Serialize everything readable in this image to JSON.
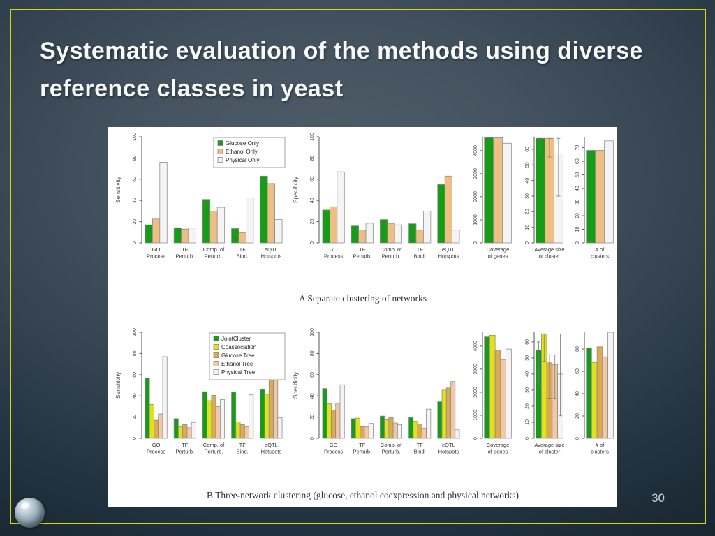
{
  "slide": {
    "title": "Systematic evaluation of the methods using diverse reference classes in yeast",
    "page_number": "30"
  },
  "figure": {
    "caption_a": "A Separate clustering of networks",
    "caption_b": "B Three-network clustering (glucose, ethanol coexpression and physical networks)"
  },
  "colors": {
    "frame_yellow": "#d6d60c",
    "title_text": "#f7f9fa",
    "panel_bg": "#ffffff",
    "page_number_text": "#c9d0d5",
    "glucose_green": "#169c16",
    "ethanol_tan": "#edbf85",
    "physical_white": "#f4f4f4",
    "coassociation_yellow": "#e3e01e",
    "glucose_tree_gold": "#dcaa52",
    "ethanol_tree_salmon": "#f0c9ab"
  },
  "chart_data": [
    {
      "type": "bar",
      "panel": "A",
      "ylabel": "Sensitivity",
      "ylim": [
        0,
        100
      ],
      "yticks": [
        0,
        20,
        40,
        60,
        80,
        100
      ],
      "grid": false,
      "legend": true,
      "legend_position": "top-right",
      "categories": [
        "GO|Process",
        "TF|Perturb.",
        "Comp. of|Perturb.",
        "TF|Bind.",
        "eQTL|Hotspots"
      ],
      "series": [
        {
          "name": "Glucose Only",
          "color": "#169c16",
          "values": [
            17,
            14,
            41,
            13.5,
            63
          ]
        },
        {
          "name": "Ethanol Only",
          "color": "#edbf85",
          "values": [
            22.5,
            13,
            30,
            9.5,
            56
          ]
        },
        {
          "name": "Physical Only",
          "color": "#f4f4f4",
          "values": [
            76,
            14,
            33.5,
            42.5,
            22
          ]
        }
      ]
    },
    {
      "type": "bar",
      "panel": "A",
      "ylabel": "Specificity",
      "ylim": [
        0,
        100
      ],
      "yticks": [
        0,
        20,
        40,
        60,
        80,
        100
      ],
      "grid": false,
      "legend": false,
      "categories": [
        "GO|Process",
        "TF|Perturb.",
        "Comp. of|Perturb.",
        "TF|Bind.",
        "eQTL|Hotspots"
      ],
      "series": [
        {
          "name": "Glucose Only",
          "color": "#169c16",
          "values": [
            31,
            16,
            22,
            18,
            55
          ]
        },
        {
          "name": "Ethanol Only",
          "color": "#edbf85",
          "values": [
            34,
            12,
            18,
            12,
            63
          ]
        },
        {
          "name": "Physical Only",
          "color": "#f4f4f4",
          "values": [
            67,
            18.5,
            17,
            30,
            12
          ]
        }
      ]
    },
    {
      "type": "bar",
      "panel": "A",
      "ylabel": "",
      "ylim": [
        0,
        4600
      ],
      "yticks": [
        0,
        1000,
        2000,
        3000,
        4000
      ],
      "grid": false,
      "legend": false,
      "categories": [
        "Coverage|of genes"
      ],
      "series": [
        {
          "name": "Glucose Only",
          "color": "#169c16",
          "values": [
            4560
          ]
        },
        {
          "name": "Ethanol Only",
          "color": "#edbf85",
          "values": [
            4560
          ]
        },
        {
          "name": "Physical Only",
          "color": "#f4f4f4",
          "values": [
            4320
          ]
        }
      ]
    },
    {
      "type": "bar",
      "panel": "A",
      "ylabel": "",
      "ylim": [
        0,
        68
      ],
      "yticks": [
        0,
        10,
        20,
        30,
        40,
        50,
        60
      ],
      "grid": false,
      "legend": false,
      "categories": [
        "Average size|of cluster"
      ],
      "series": [
        {
          "name": "Glucose Only",
          "color": "#169c16",
          "values": [
            67
          ],
          "error": [
            57,
            67
          ]
        },
        {
          "name": "Ethanol Only",
          "color": "#edbf85",
          "values": [
            67
          ],
          "error": [
            55,
            67
          ]
        },
        {
          "name": "Physical Only",
          "color": "#f4f4f4",
          "values": [
            57
          ],
          "error": [
            30,
            67
          ]
        }
      ]
    },
    {
      "type": "bar",
      "panel": "A",
      "ylabel": "",
      "ylim": [
        0,
        78
      ],
      "yticks": [
        0,
        10,
        20,
        30,
        40,
        50,
        60,
        70
      ],
      "grid": false,
      "legend": false,
      "categories": [
        "# of|clusters"
      ],
      "series": [
        {
          "name": "Glucose Only",
          "color": "#169c16",
          "values": [
            68
          ]
        },
        {
          "name": "Ethanol Only",
          "color": "#edbf85",
          "values": [
            68
          ]
        },
        {
          "name": "Physical Only",
          "color": "#f4f4f4",
          "values": [
            75
          ]
        }
      ]
    },
    {
      "type": "bar",
      "panel": "B",
      "ylabel": "Sensitivity",
      "ylim": [
        0,
        100
      ],
      "yticks": [
        0,
        20,
        40,
        60,
        80,
        100
      ],
      "grid": false,
      "legend": true,
      "legend_position": "top-right",
      "categories": [
        "GO|Process",
        "TF|Perturb.",
        "Comp. of|Perturb.",
        "TF|Bind.",
        "eQTL|Hotspots"
      ],
      "series": [
        {
          "name": "JointCluster",
          "color": "#169c16",
          "values": [
            57,
            18.5,
            44,
            43.5,
            46
          ]
        },
        {
          "name": "Coassociation",
          "color": "#e3e01e",
          "values": [
            32,
            11,
            35.5,
            15.5,
            41.5
          ]
        },
        {
          "name": "Glucose Tree",
          "color": "#dcaa52",
          "values": [
            17,
            13,
            40.5,
            13,
            56.5
          ]
        },
        {
          "name": "Ethanol Tree",
          "color": "#f0c9ab",
          "values": [
            23,
            10,
            30,
            11,
            56.5
          ]
        },
        {
          "name": "Physical Tree",
          "color": "#f4f4f4",
          "values": [
            77,
            15,
            36.5,
            41,
            19.5
          ]
        }
      ]
    },
    {
      "type": "bar",
      "panel": "B",
      "ylabel": "Specificity",
      "ylim": [
        0,
        100
      ],
      "yticks": [
        0,
        20,
        40,
        60,
        80,
        100
      ],
      "grid": false,
      "legend": false,
      "categories": [
        "GO|Process",
        "TF|Perturb.",
        "Comp. of|Perturb.",
        "TF|Bind.",
        "eQTL|Hotspots"
      ],
      "series": [
        {
          "name": "JointCluster",
          "color": "#169c16",
          "values": [
            47,
            18.5,
            21,
            19.5,
            34.5
          ]
        },
        {
          "name": "Coassociation",
          "color": "#e3e01e",
          "values": [
            32.5,
            19,
            17.5,
            16,
            45.5
          ]
        },
        {
          "name": "Glucose Tree",
          "color": "#dcaa52",
          "values": [
            26.5,
            11,
            19.5,
            13.5,
            47.5
          ]
        },
        {
          "name": "Ethanol Tree",
          "color": "#f0c9ab",
          "values": [
            33,
            11,
            14.5,
            9.5,
            53.5
          ]
        },
        {
          "name": "Physical Tree",
          "color": "#f4f4f4",
          "values": [
            50.5,
            14,
            13,
            27.5,
            8
          ]
        }
      ]
    },
    {
      "type": "bar",
      "panel": "B",
      "ylabel": "",
      "ylim": [
        0,
        4600
      ],
      "yticks": [
        0,
        1000,
        2000,
        3000,
        4000
      ],
      "grid": false,
      "legend": false,
      "categories": [
        "Coverage|of genes"
      ],
      "series": [
        {
          "name": "JointCluster",
          "color": "#169c16",
          "values": [
            4400
          ]
        },
        {
          "name": "Coassociation",
          "color": "#e3e01e",
          "values": [
            4470
          ]
        },
        {
          "name": "Glucose Tree",
          "color": "#dcaa52",
          "values": [
            3820
          ]
        },
        {
          "name": "Ethanol Tree",
          "color": "#f0c9ab",
          "values": [
            3400
          ]
        },
        {
          "name": "Physical Tree",
          "color": "#f4f4f4",
          "values": [
            3870
          ]
        }
      ]
    },
    {
      "type": "bar",
      "panel": "B",
      "ylabel": "",
      "ylim": [
        0,
        66
      ],
      "yticks": [
        0,
        10,
        20,
        30,
        40,
        50,
        60
      ],
      "grid": false,
      "legend": false,
      "categories": [
        "Average size|of cluster"
      ],
      "series": [
        {
          "name": "JointCluster",
          "color": "#169c16",
          "values": [
            55
          ],
          "error": [
            32,
            60
          ]
        },
        {
          "name": "Coassociation",
          "color": "#e3e01e",
          "values": [
            65
          ],
          "error": [
            48,
            65
          ]
        },
        {
          "name": "Glucose Tree",
          "color": "#dcaa52",
          "values": [
            47
          ],
          "error": [
            25,
            52
          ]
        },
        {
          "name": "Ethanol Tree",
          "color": "#f0c9ab",
          "values": [
            46
          ],
          "error": [
            25,
            52
          ]
        },
        {
          "name": "Physical Tree",
          "color": "#f4f4f4",
          "values": [
            40
          ],
          "error": [
            14,
            65
          ]
        }
      ]
    },
    {
      "type": "bar",
      "panel": "B",
      "ylabel": "",
      "ylim": [
        0,
        95
      ],
      "yticks": [
        0,
        20,
        40,
        60,
        80
      ],
      "grid": false,
      "legend": false,
      "categories": [
        "# of|clusters"
      ],
      "series": [
        {
          "name": "JointCluster",
          "color": "#169c16",
          "values": [
            81
          ]
        },
        {
          "name": "Coassociation",
          "color": "#e3e01e",
          "values": [
            68
          ]
        },
        {
          "name": "Glucose Tree",
          "color": "#dcaa52",
          "values": [
            82
          ]
        },
        {
          "name": "Ethanol Tree",
          "color": "#f0c9ab",
          "values": [
            73
          ]
        },
        {
          "name": "Physical Tree",
          "color": "#f4f4f4",
          "values": [
            95
          ]
        }
      ]
    }
  ]
}
